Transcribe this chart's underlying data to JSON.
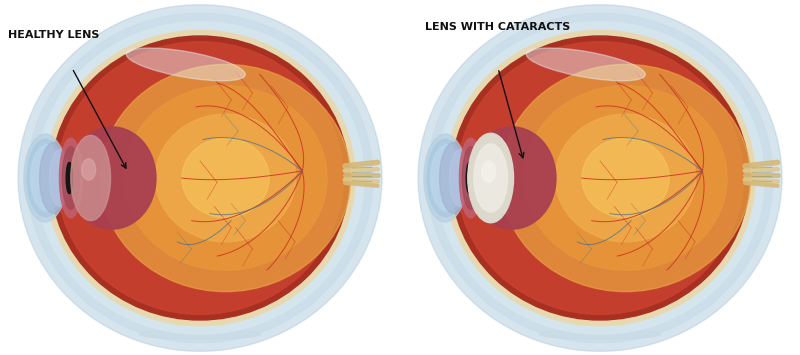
{
  "bg_color": "#ffffff",
  "label1": "HEALTHY LENS",
  "label2": "LENS WITH CATARACTS",
  "colors": {
    "sclera_outer1": "#b5cfe0",
    "sclera_outer2": "#c8dce8",
    "sclera_outer3": "#d8e8f0",
    "sclera_cream": "#e8d8b0",
    "choroid_red": "#c04030",
    "retina_dark": "#a83020",
    "retina_mid": "#c84030",
    "vitreous1": "#e8a040",
    "vitreous2": "#d88030",
    "vitreous3": "#c87030",
    "iris_pink": "#c86070",
    "iris_dark": "#a84050",
    "pupil": "#151515",
    "cornea_blue": "#a8c8e0",
    "cornea_light": "#c0d8ec",
    "lens_healthy": "#d09898",
    "lens_cataract": "#e8e0d4",
    "nerve_beige": "#d4b878",
    "nerve_cream": "#e0c890",
    "vessel_red": "#cc3020",
    "vessel_blue": "#4a7090",
    "vessel_blue2": "#507888"
  }
}
